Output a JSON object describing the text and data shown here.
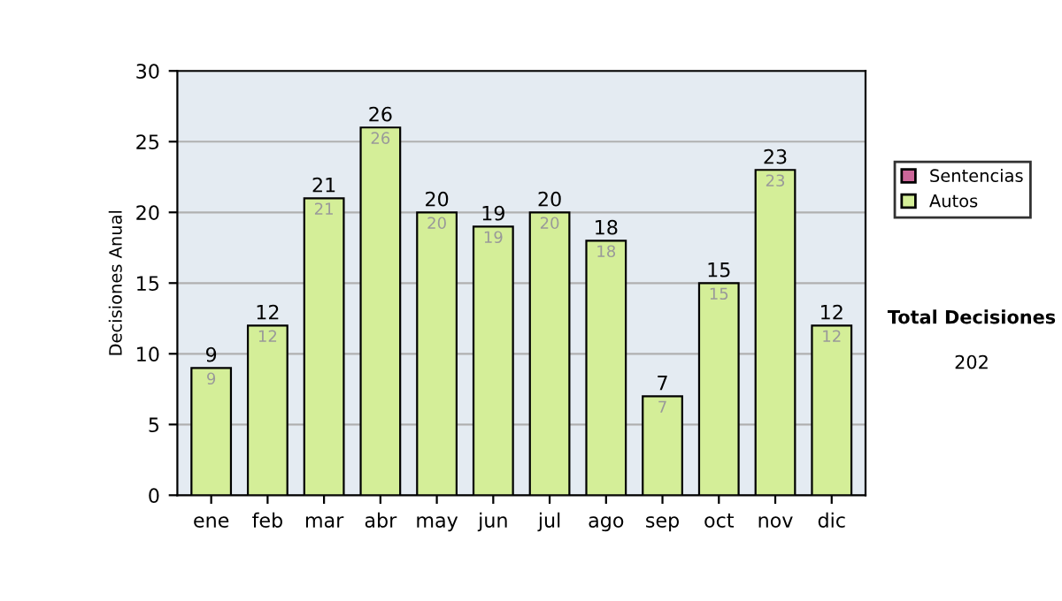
{
  "chart_data": {
    "type": "bar",
    "stacked": true,
    "ylabel": "Decisiones Anual",
    "categories": [
      "ene",
      "feb",
      "mar",
      "abr",
      "may",
      "jun",
      "jul",
      "ago",
      "sep",
      "oct",
      "nov",
      "dic"
    ],
    "series": [
      {
        "name": "Sentencias",
        "color": "#cc6699",
        "values": [
          0,
          0,
          0,
          0,
          0,
          0,
          0,
          0,
          0,
          0,
          0,
          0
        ]
      },
      {
        "name": "Autos",
        "color": "#d4ee98",
        "values": [
          9,
          12,
          21,
          26,
          20,
          19,
          20,
          18,
          7,
          15,
          23,
          12
        ],
        "value_labels": [
          "9",
          "12",
          "21",
          "26",
          "20",
          "19",
          "20",
          "18",
          "7",
          "15",
          "23",
          "12"
        ]
      }
    ],
    "totals": [
      "9",
      "12",
      "21",
      "26",
      "20",
      "19",
      "20",
      "18",
      "7",
      "15",
      "23",
      "12"
    ],
    "ylim": [
      0,
      30
    ],
    "yticks": [
      0,
      5,
      10,
      15,
      20,
      25,
      30
    ],
    "grid": "y",
    "legend": "right",
    "annotations": [
      "Total Decisiones",
      "202"
    ]
  }
}
